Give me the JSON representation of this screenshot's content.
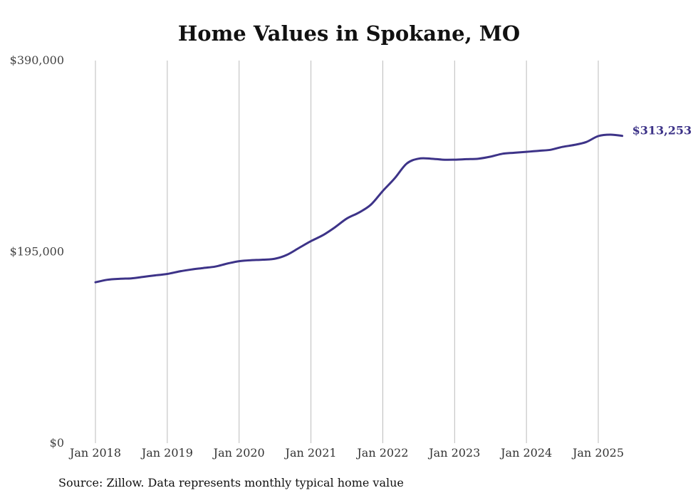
{
  "chart_data": {
    "type": "line",
    "title": "Home Values in Spokane, MO",
    "source": "Source: Zillow. Data represents monthly typical home value",
    "xlabel": "",
    "ylabel": "",
    "ylim": [
      0,
      390000
    ],
    "y_ticks": [
      0,
      195000,
      390000
    ],
    "y_tick_labels": [
      "$0",
      "$195,000",
      "$390,000"
    ],
    "x_ticks": [
      "2018-01",
      "2019-01",
      "2020-01",
      "2021-01",
      "2022-01",
      "2023-01",
      "2024-01",
      "2025-01"
    ],
    "x_tick_labels": [
      "Jan 2018",
      "Jan 2019",
      "Jan 2020",
      "Jan 2021",
      "Jan 2022",
      "Jan 2023",
      "Jan 2024",
      "Jan 2025"
    ],
    "grid": "vertical",
    "line_color": "#3d3388",
    "end_label": "$313,253",
    "series": [
      {
        "x": [
          "2018-01",
          "2018-03",
          "2018-05",
          "2018-07",
          "2018-09",
          "2018-11",
          "2019-01",
          "2019-03",
          "2019-05",
          "2019-07",
          "2019-09",
          "2019-11",
          "2020-01",
          "2020-03",
          "2020-05",
          "2020-07",
          "2020-09",
          "2020-11",
          "2021-01",
          "2021-03",
          "2021-05",
          "2021-07",
          "2021-09",
          "2021-11",
          "2022-01",
          "2022-03",
          "2022-05",
          "2022-07",
          "2022-09",
          "2022-11",
          "2023-01",
          "2023-03",
          "2023-05",
          "2023-07",
          "2023-09",
          "2023-11",
          "2024-01",
          "2024-03",
          "2024-05",
          "2024-07",
          "2024-09",
          "2024-11",
          "2025-01",
          "2025-03",
          "2025-05"
        ],
        "values": [
          164000,
          166500,
          167500,
          168000,
          169500,
          171000,
          172500,
          175000,
          177000,
          178500,
          180000,
          183000,
          185500,
          186500,
          187000,
          188000,
          192000,
          199000,
          206000,
          212000,
          220000,
          229000,
          235000,
          243000,
          257000,
          270000,
          285000,
          290000,
          290000,
          289000,
          289000,
          289500,
          290000,
          292000,
          295000,
          296000,
          297000,
          298000,
          299000,
          302000,
          304000,
          307000,
          313000,
          314500,
          313253
        ]
      }
    ]
  }
}
